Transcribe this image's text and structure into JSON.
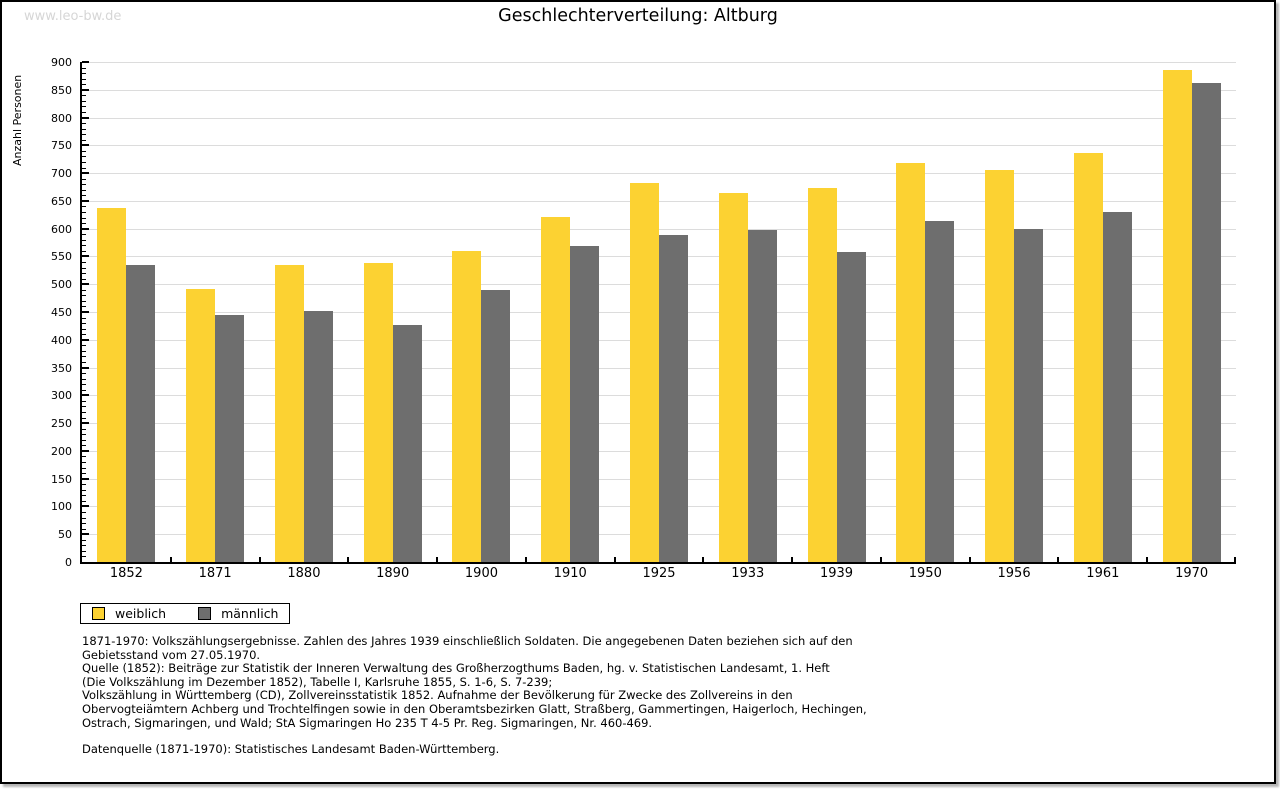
{
  "watermark": "www.leo-bw.de",
  "title": "Geschlechterverteilung: Altburg",
  "chart_data": {
    "type": "bar",
    "title": "Geschlechterverteilung: Altburg",
    "xlabel": "",
    "ylabel": "Anzahl Personen",
    "ylim": [
      0,
      900
    ],
    "ytick_step": 50,
    "minor_tick_step": 10,
    "grid": true,
    "legend_position": "bottom-left",
    "categories": [
      "1852",
      "1871",
      "1880",
      "1890",
      "1900",
      "1910",
      "1925",
      "1933",
      "1939",
      "1950",
      "1956",
      "1961",
      "1970"
    ],
    "series": [
      {
        "key": "weiblich",
        "name": "weiblich",
        "color": "#fcd232",
        "values": [
          638,
          491,
          534,
          538,
          559,
          621,
          683,
          664,
          673,
          719,
          706,
          737,
          886
        ]
      },
      {
        "key": "maennlich",
        "name": "männlich",
        "color": "#6e6e6e",
        "values": [
          534,
          444,
          451,
          427,
          489,
          569,
          588,
          597,
          558,
          613,
          599,
          630,
          862
        ]
      }
    ]
  },
  "footnotes": [
    "1871-1970: Volkszählungsergebnisse. Zahlen des Jahres 1939 einschließlich Soldaten. Die angegebenen Daten beziehen sich auf den",
    "Gebietsstand vom 27.05.1970.",
    "Quelle (1852): Beiträge zur Statistik der Inneren Verwaltung des Großherzogthums Baden, hg. v. Statistischen Landesamt, 1. Heft",
    "(Die Volkszählung im Dezember 1852), Tabelle I, Karlsruhe 1855, S. 1-6, S. 7-239;",
    "Volkszählung in Württemberg (CD), Zollvereinsstatistik 1852. Aufnahme der Bevölkerung für Zwecke des Zollvereins in den",
    "Obervogteiämtern Achberg und Trochtelfingen sowie in den Oberamtsbezirken Glatt, Straßberg, Gammertingen, Haigerloch, Hechingen,",
    "Ostrach, Sigmaringen, und Wald; StA Sigmaringen Ho 235 T 4-5 Pr. Reg. Sigmaringen, Nr. 460-469."
  ],
  "datasource": "Datenquelle (1871-1970): Statistisches Landesamt Baden-Württemberg."
}
